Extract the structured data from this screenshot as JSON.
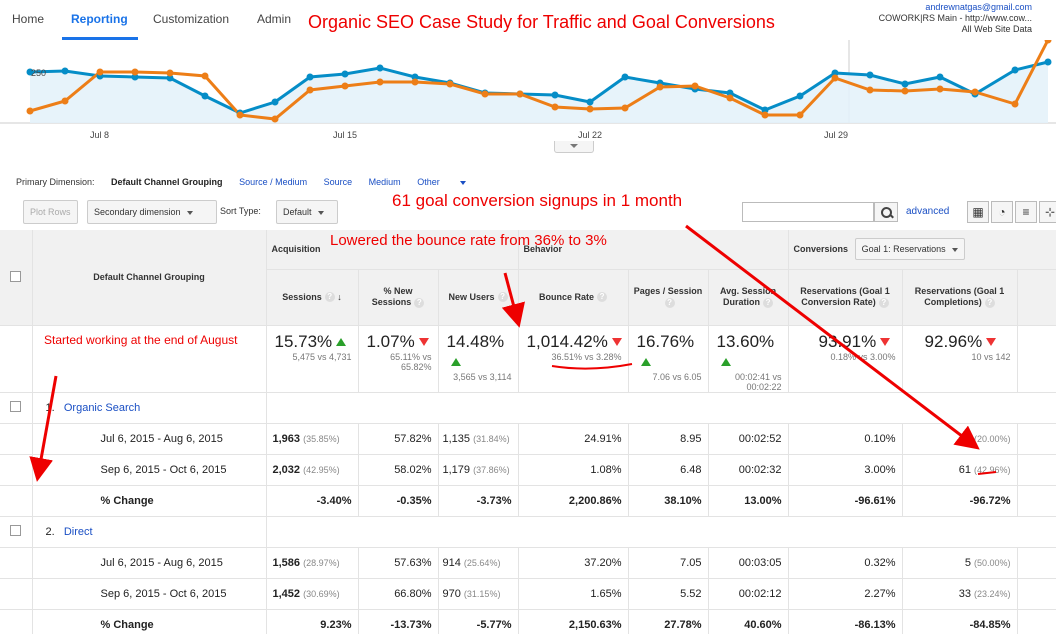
{
  "nav": {
    "items": [
      "Home",
      "Reporting",
      "Customization",
      "Admin"
    ],
    "active": "Reporting",
    "account_email": "andrewnatgas@gmail.com",
    "account_property": "COWORK|RS Main - http://www.cow...",
    "account_view": "All Web Site Data"
  },
  "annotations": {
    "title": "Organic SEO Case Study for Traffic and Goal Conversions",
    "goal_note": "61 goal conversion signups in 1 month",
    "bounce_note": "Lowered the bounce rate from 36% to 3%",
    "start_note": "Started working at the end of August",
    "color": "#e00000"
  },
  "chart": {
    "y_label": "250",
    "x_ticks": [
      "Jul 8",
      "Jul 15",
      "Jul 22",
      "Jul 29"
    ],
    "colors": {
      "current": "#058dc7",
      "previous": "#ed7e17"
    }
  },
  "dimension_bar": {
    "label": "Primary Dimension:",
    "current": "Default Channel Grouping",
    "options": [
      "Source / Medium",
      "Source",
      "Medium",
      "Other"
    ]
  },
  "toolbar": {
    "plot_rows": "Plot Rows",
    "secondary_dimension": "Secondary dimension",
    "sort_type_label": "Sort Type:",
    "sort_type_value": "Default",
    "advanced": "advanced"
  },
  "table": {
    "dimension_header": "Default Channel Grouping",
    "groups": {
      "acquisition": "Acquisition",
      "behavior": "Behavior",
      "conversions": "Conversions",
      "goal_select": "Goal 1: Reservations"
    },
    "columns": [
      "Sessions",
      "% New Sessions",
      "New Users",
      "Bounce Rate",
      "Pages / Session",
      "Avg. Session Duration",
      "Reservations (Goal 1 Conversion Rate)",
      "Reservations (Goal 1 Completions)"
    ],
    "totals": [
      {
        "value": "15.73%",
        "trend": "up",
        "sub": "5,475 vs 4,731"
      },
      {
        "value": "1.07%",
        "trend": "down",
        "sub": "65.11% vs 65.82%"
      },
      {
        "value": "14.48%",
        "trend": "up",
        "sub": "3,565 vs 3,114"
      },
      {
        "value": "1,014.42%",
        "trend": "down",
        "sub": "36.51% vs 3.28%"
      },
      {
        "value": "16.76%",
        "trend": "up",
        "sub": "7.06 vs 6.05"
      },
      {
        "value": "13.60%",
        "trend": "up",
        "sub": "00:02:41 vs 00:02:22"
      },
      {
        "value": "93.91%",
        "trend": "down",
        "sub": "0.18% vs 3.00%"
      },
      {
        "value": "92.96%",
        "trend": "down",
        "sub": "10 vs 142"
      }
    ],
    "rows": [
      {
        "num": "1.",
        "channel": "Organic Search",
        "periods": [
          {
            "label": "Jul 6, 2015 - Aug 6, 2015",
            "sessions": "1,963",
            "sessions_pct": "(35.85%)",
            "new_sessions": "57.82%",
            "new_users": "1,135",
            "new_users_pct": "(31.84%)",
            "bounce": "24.91%",
            "pages": "8.95",
            "duration": "00:02:52",
            "conv_rate": "0.10%",
            "completions": "2",
            "completions_pct": "(20.00%)"
          },
          {
            "label": "Sep 6, 2015 - Oct 6, 2015",
            "sessions": "2,032",
            "sessions_pct": "(42.95%)",
            "new_sessions": "58.02%",
            "new_users": "1,179",
            "new_users_pct": "(37.86%)",
            "bounce": "1.08%",
            "pages": "6.48",
            "duration": "00:02:32",
            "conv_rate": "3.00%",
            "completions": "61",
            "completions_pct": "(42.96%)"
          }
        ],
        "change": {
          "label": "% Change",
          "sessions": "-3.40%",
          "new_sessions": "-0.35%",
          "new_users": "-3.73%",
          "bounce": "2,200.86%",
          "pages": "38.10%",
          "duration": "13.00%",
          "conv_rate": "-96.61%",
          "completions": "-96.72%"
        }
      },
      {
        "num": "2.",
        "channel": "Direct",
        "periods": [
          {
            "label": "Jul 6, 2015 - Aug 6, 2015",
            "sessions": "1,586",
            "sessions_pct": "(28.97%)",
            "new_sessions": "57.63%",
            "new_users": "914",
            "new_users_pct": "(25.64%)",
            "bounce": "37.20%",
            "pages": "7.05",
            "duration": "00:03:05",
            "conv_rate": "0.32%",
            "completions": "5",
            "completions_pct": "(50.00%)"
          },
          {
            "label": "Sep 6, 2015 - Oct 6, 2015",
            "sessions": "1,452",
            "sessions_pct": "(30.69%)",
            "new_sessions": "66.80%",
            "new_users": "970",
            "new_users_pct": "(31.15%)",
            "bounce": "1.65%",
            "pages": "5.52",
            "duration": "00:02:12",
            "conv_rate": "2.27%",
            "completions": "33",
            "completions_pct": "(23.24%)"
          }
        ],
        "change": {
          "label": "% Change",
          "sessions": "9.23%",
          "new_sessions": "-13.73%",
          "new_users": "-5.77%",
          "bounce": "2,150.63%",
          "pages": "27.78%",
          "duration": "40.60%",
          "conv_rate": "-86.13%",
          "completions": "-84.85%"
        }
      }
    ]
  }
}
